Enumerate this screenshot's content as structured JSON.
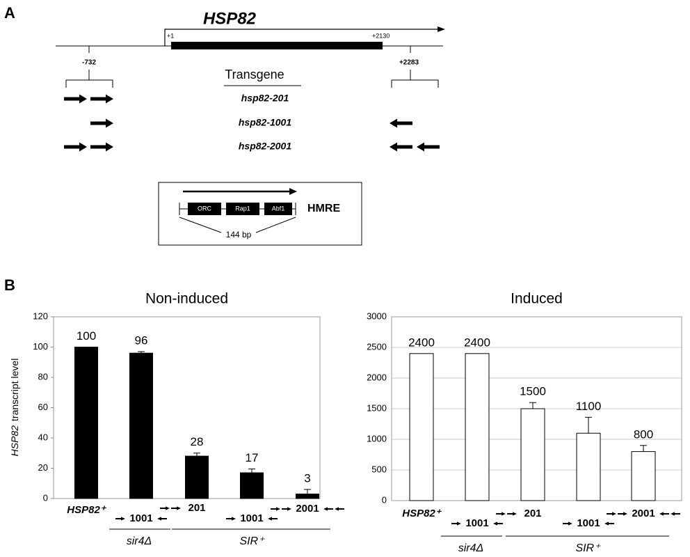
{
  "panel_labels": [
    "A",
    "B"
  ],
  "panel_a": {
    "gene": "HSP82",
    "start": "+1",
    "end": "+2130",
    "left_pos": "-732",
    "right_pos": "+2283",
    "transgene_header": "Transgene",
    "transgenes": [
      "hsp82-201",
      "hsp82-1001",
      "hsp82-2001"
    ],
    "hmre": {
      "name": "HMRE",
      "elements": [
        "ORC",
        "Rap1",
        "Abf1"
      ],
      "length": "144 bp"
    }
  },
  "chart_data": [
    {
      "type": "bar",
      "title": "Non-induced",
      "ylabel_gene": "HSP82",
      "ylabel": "transcript level",
      "categories": [
        "HSP82⁺",
        "1001",
        "201",
        "1001",
        "2001"
      ],
      "values": [
        100,
        96,
        28,
        17,
        3
      ],
      "errors": [
        null,
        1,
        2,
        2.5,
        3
      ],
      "groups": [
        "sir4Δ",
        "SIR⁺"
      ],
      "color": "#000000",
      "ylim": [
        0,
        120
      ],
      "yticks": [
        0,
        20,
        40,
        60,
        80,
        100,
        120
      ],
      "grid": false
    },
    {
      "type": "bar",
      "title": "Induced",
      "categories": [
        "HSP82⁺",
        "1001",
        "201",
        "1001",
        "2001"
      ],
      "values": [
        2400,
        2400,
        1500,
        1100,
        800
      ],
      "errors": [
        null,
        null,
        100,
        260,
        100
      ],
      "groups": [
        "sir4Δ",
        "SIR⁺"
      ],
      "color": "#ffffff",
      "ylim": [
        0,
        3000
      ],
      "yticks": [
        0,
        500,
        1000,
        1500,
        2000,
        2500,
        3000
      ],
      "grid": true
    }
  ]
}
